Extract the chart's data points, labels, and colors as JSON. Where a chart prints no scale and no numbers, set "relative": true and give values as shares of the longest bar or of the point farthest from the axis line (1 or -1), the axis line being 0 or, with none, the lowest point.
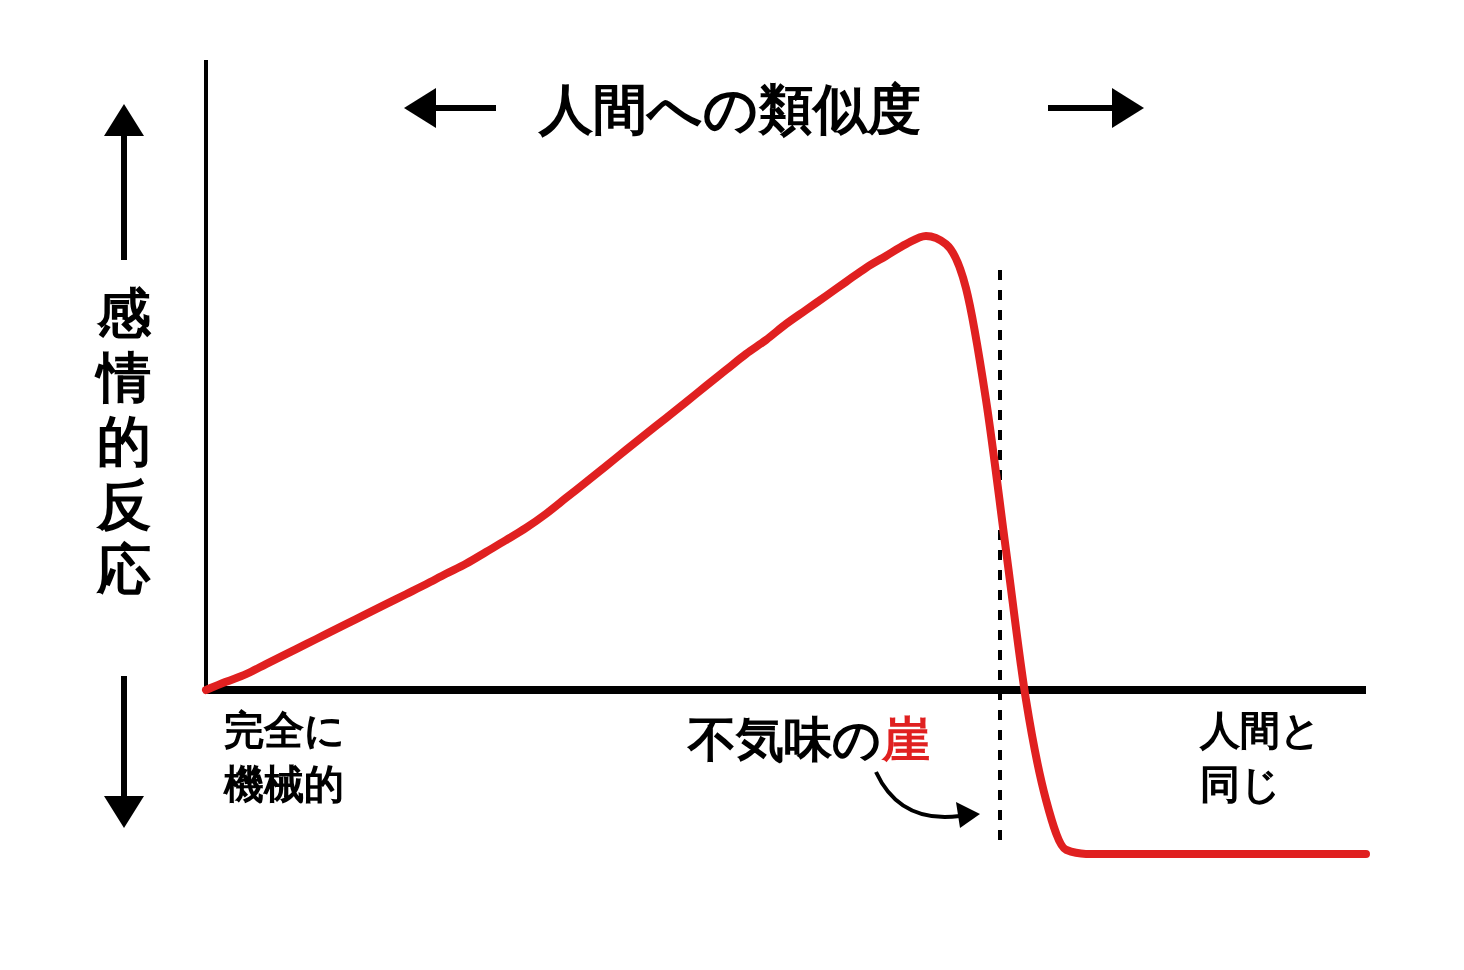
{
  "chart_data": {
    "type": "line",
    "relative": true,
    "xlabel": "人間への類似度",
    "ylabel": "感情的反応",
    "categories": [
      null,
      null,
      null,
      null,
      null,
      null,
      null,
      null,
      null,
      null,
      null,
      null,
      null,
      null,
      null,
      null,
      null,
      null,
      null,
      null,
      null,
      null,
      null,
      null,
      null,
      null,
      null,
      null,
      null,
      null,
      null,
      null,
      null,
      null,
      null,
      null,
      null,
      null,
      null,
      null,
      null,
      null,
      null,
      null,
      null,
      null,
      null,
      null,
      null,
      null,
      null,
      null,
      null,
      null,
      null,
      null,
      null,
      null,
      null
    ],
    "series": [
      {
        "color": "#e02020",
        "values": [
          0,
          0.018,
          0.035,
          0.057,
          0.079,
          0.101,
          0.123,
          0.145,
          0.167,
          0.189,
          0.211,
          0.233,
          0.256,
          0.278,
          0.304,
          0.33,
          0.357,
          0.388,
          0.423,
          0.458,
          0.493,
          0.529,
          0.564,
          0.599,
          0.634,
          0.67,
          0.705,
          0.74,
          0.771,
          0.806,
          0.837,
          0.868,
          0.899,
          0.93,
          0.956,
          0.982,
          1,
          0.982,
          0.885,
          0.639,
          0.308,
          -0.022,
          -0.242,
          -0.352,
          -0.361,
          -0.361,
          -0.361,
          -0.361,
          -0.361,
          -0.361,
          -0.361,
          -0.361,
          -0.361,
          -0.361,
          -0.361,
          -0.361,
          -0.361,
          -0.361,
          -0.361
        ]
      }
    ],
    "annotations": [
      "完全に機械的",
      "不気味の崖",
      "人間と同じ"
    ],
    "marker": "none",
    "line_style": "solid"
  }
}
